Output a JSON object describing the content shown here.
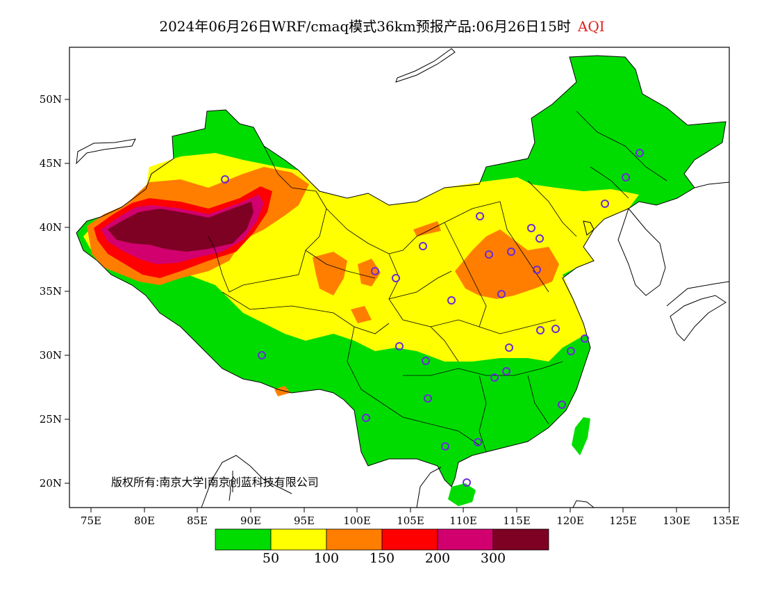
{
  "title": {
    "main": "2024年06月26日WRF/cmaq模式36km预报产品:06月26日15时",
    "variable": "AQI"
  },
  "axes": {
    "lat_ticks": [
      "20N",
      "25N",
      "30N",
      "35N",
      "40N",
      "45N",
      "50N"
    ],
    "lon_ticks": [
      "75E",
      "80E",
      "85E",
      "90E",
      "95E",
      "100E",
      "105E",
      "110E",
      "115E",
      "120E",
      "125E",
      "130E",
      "135E"
    ],
    "lon_range": [
      73,
      135
    ],
    "lat_range": [
      18,
      54
    ]
  },
  "legend": {
    "boundaries": [
      "50",
      "100",
      "150",
      "200",
      "300"
    ],
    "colors": [
      "#00dc00",
      "#ffff00",
      "#ff7e00",
      "#ff0000",
      "#d2006e",
      "#7e0023"
    ]
  },
  "copyright": "版权所有:南京大学|南京创蓝科技有限公司",
  "colors": {
    "good": "#00dc00",
    "moderate": "#ffff00",
    "usg": "#ff7e00",
    "unhealthy": "#ff0000",
    "very_unhealthy": "#d2006e",
    "hazardous": "#7e0023",
    "station_marker": "#6a2bd8"
  }
}
